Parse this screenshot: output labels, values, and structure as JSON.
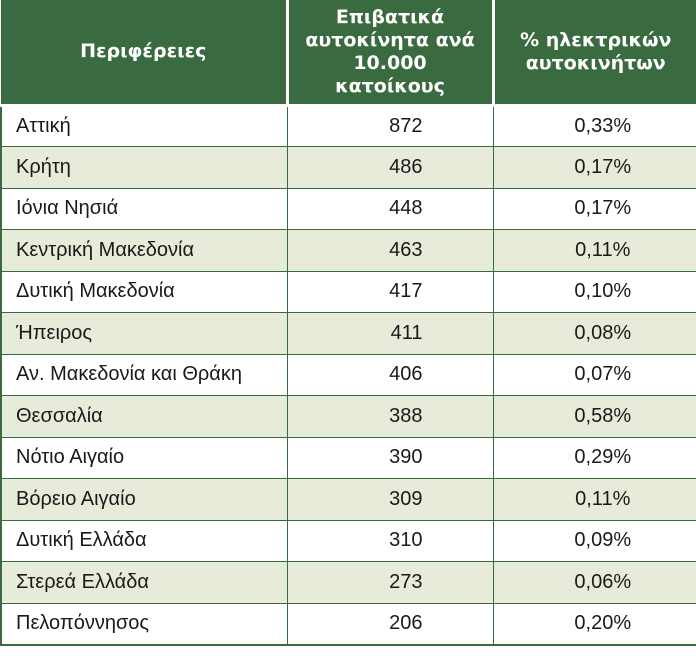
{
  "table": {
    "headers": {
      "region": "Περιφέρειες",
      "cars": "Επιβατικά αυτοκίνητα ανά 10.000 κατοίκους",
      "electric": "% ηλεκτρικών αυτοκινήτων"
    },
    "rows": [
      {
        "region": "Αττική",
        "cars": "872",
        "electric": "0,33%"
      },
      {
        "region": "Κρήτη",
        "cars": "486",
        "electric": "0,17%"
      },
      {
        "region": "Ιόνια Νησιά",
        "cars": "448",
        "electric": "0,17%"
      },
      {
        "region": "Κεντρική Μακεδονία",
        "cars": "463",
        "electric": "0,11%"
      },
      {
        "region": "Δυτική Μακεδονία",
        "cars": "417",
        "electric": "0,10%"
      },
      {
        "region": "Ήπειρος",
        "cars": "411",
        "electric": "0,08%"
      },
      {
        "region": "Αν. Μακεδονία και Θράκη",
        "cars": "406",
        "electric": "0,07%"
      },
      {
        "region": "Θεσσαλία",
        "cars": "388",
        "electric": "0,58%"
      },
      {
        "region": "Νότιο Αιγαίο",
        "cars": "390",
        "electric": "0,29%"
      },
      {
        "region": "Βόρειο Αιγαίο",
        "cars": "309",
        "electric": "0,11%"
      },
      {
        "region": "Δυτική Ελλάδα",
        "cars": "310",
        "electric": "0,09%"
      },
      {
        "region": "Στερεά Ελλάδα",
        "cars": "273",
        "electric": "0,06%"
      },
      {
        "region": "Πελοπόννησος",
        "cars": "206",
        "electric": "0,20%"
      }
    ]
  },
  "colors": {
    "header_bg": "#3a6a3f",
    "stripe_bg": "#e6ecd9",
    "border": "#3a6a3f"
  }
}
